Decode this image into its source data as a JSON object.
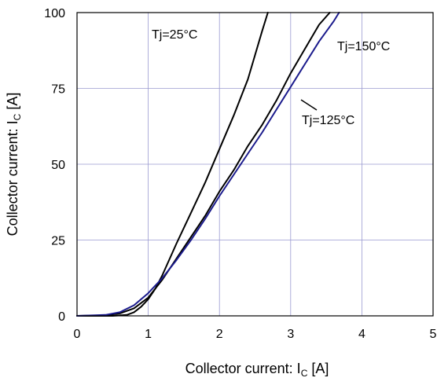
{
  "chart_data": {
    "type": "line",
    "title": "",
    "xlabel_main": "Collector current: I",
    "xlabel_sub": "C",
    "xlabel_tail": " [A]",
    "ylabel_main": "Collector current: I",
    "ylabel_sub": "C",
    "ylabel_tail": " [A]",
    "xlim": [
      0,
      5
    ],
    "ylim": [
      0,
      100
    ],
    "xticks": [
      0,
      1,
      2,
      3,
      4,
      5
    ],
    "yticks": [
      0,
      25,
      50,
      75,
      100
    ],
    "grid": true,
    "series": [
      {
        "name": "Tj=25°C",
        "color": "#000000",
        "x": [
          0,
          0.5,
          0.7,
          0.8,
          0.9,
          1.0,
          1.1,
          1.2,
          1.4,
          1.6,
          1.8,
          2.0,
          2.2,
          2.4,
          2.6,
          2.68
        ],
        "y": [
          0,
          0,
          0.3,
          1.2,
          3,
          5.5,
          9,
          13.5,
          24,
          34,
          44,
          55,
          66,
          78,
          94,
          100
        ]
      },
      {
        "name": "Tj=125°C",
        "color": "#000000",
        "x": [
          0,
          0.4,
          0.6,
          0.8,
          1.0,
          1.2,
          1.4,
          1.6,
          1.8,
          2.0,
          2.2,
          2.4,
          2.6,
          2.8,
          3.0,
          3.2,
          3.4,
          3.55
        ],
        "y": [
          0,
          0.2,
          0.8,
          2.5,
          6,
          12,
          19,
          26,
          33,
          41,
          48,
          56,
          63,
          71,
          80,
          88,
          96,
          100
        ]
      },
      {
        "name": "Tj=150°C",
        "color": "#1a1a8c",
        "x": [
          0,
          0.4,
          0.6,
          0.8,
          1.0,
          1.2,
          1.4,
          1.6,
          1.8,
          2.0,
          2.2,
          2.4,
          2.6,
          2.8,
          3.0,
          3.2,
          3.4,
          3.6,
          3.68
        ],
        "y": [
          0,
          0.3,
          1.2,
          3.5,
          7.5,
          12.5,
          18.5,
          25,
          32,
          39.5,
          46.5,
          53.5,
          60.5,
          68,
          75.5,
          83,
          90.5,
          97,
          100
        ]
      }
    ],
    "annotations": {
      "tj25": "Tj=25°C",
      "tj150": "Tj=150°C",
      "tj125": "Tj=125°C"
    }
  }
}
